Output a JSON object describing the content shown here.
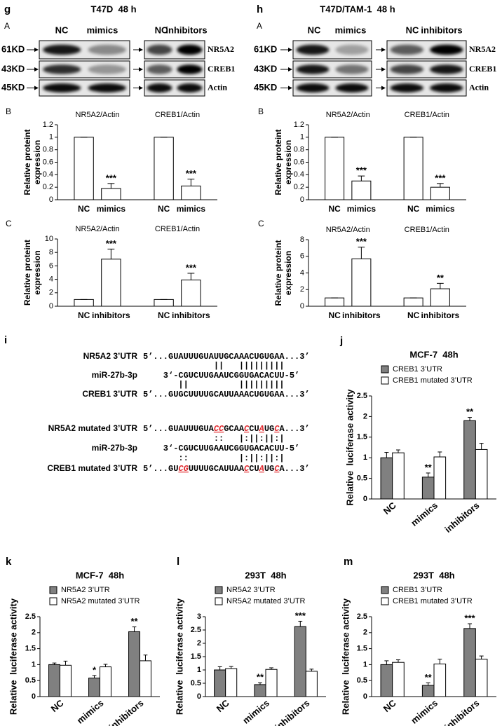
{
  "blots": [
    {
      "panel": "g",
      "sub": "A",
      "title": "T47D  48 h",
      "columns": [
        "NC",
        "mimics",
        "NC",
        "inhibitors"
      ],
      "markers": [
        "61KD",
        "43KD",
        "45KD"
      ],
      "proteins": [
        "NR5A2",
        "CREB1",
        "Actin"
      ]
    },
    {
      "panel": "h",
      "sub": "A",
      "title": "T47D/TAM-1  48 h",
      "columns": [
        "NC",
        "mimics",
        "NC",
        "inhibitors"
      ],
      "markers": [
        "61KD",
        "43KD",
        "45KD"
      ],
      "proteins": [
        "NR5A2",
        "CREB1",
        "Actin"
      ]
    }
  ],
  "sequences": {
    "panel": "i",
    "rows": [
      {
        "label": "NR5A2 3’UTR",
        "parts": [
          {
            "text": "5’...GUAUUUGUAUUGCAAACUGUGAA...3’"
          }
        ]
      },
      {
        "pairs": "              ||   |||||||||"
      },
      {
        "label": "miR-27b-3p",
        "parts": [
          {
            "text": "    3‘-CGUCUUGAAUCGGUGACACUU-5’"
          }
        ]
      },
      {
        "pairs": "       ||          |||||||||"
      },
      {
        "label": "CREB1 3’UTR",
        "parts": [
          {
            "text": "5’...GUGCUUUUGCAUUAAACUGUGAA...3’"
          }
        ]
      },
      {
        "label": "NR5A2 mutated 3’UTR",
        "parts": [
          {
            "text": "5’...GUAUUUGUA"
          },
          {
            "text": "CC",
            "mutated": true
          },
          {
            "text": "GCAA"
          },
          {
            "text": "C",
            "mutated": true
          },
          {
            "text": "CU"
          },
          {
            "text": "A",
            "mutated": true
          },
          {
            "text": "UG"
          },
          {
            "text": "C",
            "mutated": true
          },
          {
            "text": "A...3’"
          }
        ]
      },
      {
        "pairs": "              ::   |:||:||:|"
      },
      {
        "label": "miR-27b-3p",
        "parts": [
          {
            "text": "    3‘-CGUCUUGAAUCGGUGACACUU-5’"
          }
        ]
      },
      {
        "pairs": "       ::          |:||:||:|"
      },
      {
        "label": "CREB1 mutated 3’UTR",
        "parts": [
          {
            "text": "5’...GU"
          },
          {
            "text": "CG",
            "mutated": true
          },
          {
            "text": "UUUUGCAUUAA"
          },
          {
            "text": "C",
            "mutated": true
          },
          {
            "text": "CU"
          },
          {
            "text": "A",
            "mutated": true
          },
          {
            "text": "UG"
          },
          {
            "text": "C",
            "mutated": true
          },
          {
            "text": "A...3’"
          }
        ]
      }
    ]
  },
  "chart_data": [
    {
      "type": "bar",
      "panel": "B",
      "group_labels": [
        "NR5A2/Actin",
        "CREB1/Actin"
      ],
      "categories": [
        "NC",
        "mimics",
        "NC",
        "mimics"
      ],
      "series": [
        {
          "color": "#ffffff",
          "values": [
            1,
            0.18,
            1,
            0.22
          ],
          "errors": [
            0,
            0.08,
            0,
            0.11
          ],
          "annotations": [
            null,
            "***",
            null,
            "***"
          ]
        }
      ],
      "ylabel": [
        "Relative proteint",
        "expression"
      ],
      "ylim": [
        0,
        1.2
      ],
      "yticks": [
        0,
        0.2,
        0.4,
        0.6,
        0.8,
        1,
        1.2
      ]
    },
    {
      "type": "bar",
      "panel": "C",
      "group_labels": [
        "NR5A2/Actin",
        "CREB1/Actin"
      ],
      "categories": [
        "NC",
        "inhibitors",
        "NC",
        "inhibitors"
      ],
      "series": [
        {
          "color": "#ffffff",
          "values": [
            1,
            7,
            1,
            3.9
          ],
          "errors": [
            0,
            1.5,
            0,
            1
          ],
          "annotations": [
            null,
            "***",
            null,
            "***"
          ]
        }
      ],
      "ylabel": [
        "Relative proteint",
        "expression"
      ],
      "ylim": [
        0,
        10
      ],
      "yticks": [
        0,
        2,
        4,
        6,
        8,
        10
      ]
    },
    {
      "type": "bar",
      "panel": "B",
      "group_labels": [
        "NR5A2/Actin",
        "CREB1/Actin"
      ],
      "categories": [
        "NC",
        "mimics",
        "NC",
        "mimics"
      ],
      "series": [
        {
          "color": "#ffffff",
          "values": [
            1,
            0.3,
            1,
            0.2
          ],
          "errors": [
            0,
            0.08,
            0,
            0.06
          ],
          "annotations": [
            null,
            "***",
            null,
            "***"
          ]
        }
      ],
      "ylabel": [
        "Relative proteint",
        "expression"
      ],
      "ylim": [
        0,
        1.2
      ],
      "yticks": [
        0,
        0.2,
        0.4,
        0.6,
        0.8,
        1,
        1.2
      ]
    },
    {
      "type": "bar",
      "panel": "C",
      "group_labels": [
        "NR5A2/Actin",
        "CREB1/Actin"
      ],
      "categories": [
        "NC",
        "inhibitors",
        "NC",
        "inhibitors"
      ],
      "series": [
        {
          "color": "#ffffff",
          "values": [
            1,
            5.7,
            1,
            2.1
          ],
          "errors": [
            0,
            1.4,
            0,
            0.65
          ],
          "annotations": [
            null,
            "***",
            null,
            "**"
          ]
        }
      ],
      "ylabel": [
        "Relative proteint",
        "expression"
      ],
      "ylim": [
        0,
        8
      ],
      "yticks": [
        0,
        2,
        4,
        6,
        8
      ]
    },
    {
      "type": "bar",
      "panel": "j",
      "title": "MCF-7  48h",
      "categories": [
        "NC",
        "mimics",
        "inhibitors"
      ],
      "series": [
        {
          "name": "CREB1 3’UTR",
          "color": "#808080",
          "values": [
            1,
            0.53,
            1.9
          ],
          "errors": [
            0.13,
            0.1,
            0.08
          ],
          "annotations": [
            null,
            "**",
            "**"
          ]
        },
        {
          "name": "CREB1 mutated 3’UTR",
          "color": "#ffffff",
          "values": [
            1.12,
            1.02,
            1.2
          ],
          "errors": [
            0.07,
            0.12,
            0.15
          ]
        }
      ],
      "ylabel": "Relative  luciferase activity",
      "ylim": [
        0,
        2.5
      ],
      "yticks": [
        0,
        0.5,
        1,
        1.5,
        2,
        2.5
      ]
    },
    {
      "type": "bar",
      "panel": "k",
      "title": "MCF-7  48h",
      "categories": [
        "NC",
        "mimics",
        "inhibitors"
      ],
      "series": [
        {
          "name": "NR5A2 3’UTR",
          "color": "#808080",
          "values": [
            1,
            0.58,
            2.03
          ],
          "errors": [
            0.05,
            0.08,
            0.15
          ],
          "annotations": [
            null,
            "*",
            "**"
          ]
        },
        {
          "name": "NR5A2 mutated 3’UTR",
          "color": "#ffffff",
          "values": [
            0.98,
            0.93,
            1.12
          ],
          "errors": [
            0.13,
            0.08,
            0.18
          ]
        }
      ],
      "ylabel": "Relative  luciferase activity",
      "ylim": [
        0,
        2.5
      ],
      "yticks": [
        0,
        0.5,
        1,
        1.5,
        2,
        2.5
      ]
    },
    {
      "type": "bar",
      "panel": "l",
      "title": "293T  48h",
      "categories": [
        "NC",
        "mimics",
        "inhibitors"
      ],
      "series": [
        {
          "name": "NR5A2 3’UTR",
          "color": "#808080",
          "values": [
            1,
            0.45,
            2.63
          ],
          "errors": [
            0.12,
            0.07,
            0.2
          ],
          "annotations": [
            null,
            "**",
            "***"
          ]
        },
        {
          "name": "NR5A2 mutated 3’UTR",
          "color": "#ffffff",
          "values": [
            1.05,
            1.02,
            0.95
          ],
          "errors": [
            0.08,
            0.06,
            0.08
          ]
        }
      ],
      "ylabel": "Relative  luciferase activity",
      "ylim": [
        0,
        3
      ],
      "yticks": [
        0,
        0.5,
        1,
        1.5,
        2,
        2.5,
        3
      ]
    },
    {
      "type": "bar",
      "panel": "m",
      "title": "293T  48h",
      "categories": [
        "NC",
        "mimics",
        "inhibitors"
      ],
      "series": [
        {
          "name": "CREB1 3’UTR",
          "color": "#808080",
          "values": [
            1,
            0.35,
            2.13
          ],
          "errors": [
            0.12,
            0.08,
            0.15
          ],
          "annotations": [
            null,
            "**",
            "***"
          ]
        },
        {
          "name": "CREB1 mutated 3’UTR",
          "color": "#ffffff",
          "values": [
            1.07,
            1.02,
            1.17
          ],
          "errors": [
            0.08,
            0.15,
            0.1
          ]
        }
      ],
      "ylabel": "Relative  luciferase activity",
      "ylim": [
        0,
        2.5
      ],
      "yticks": [
        0,
        0.5,
        1,
        1.5,
        2,
        2.5
      ]
    }
  ]
}
